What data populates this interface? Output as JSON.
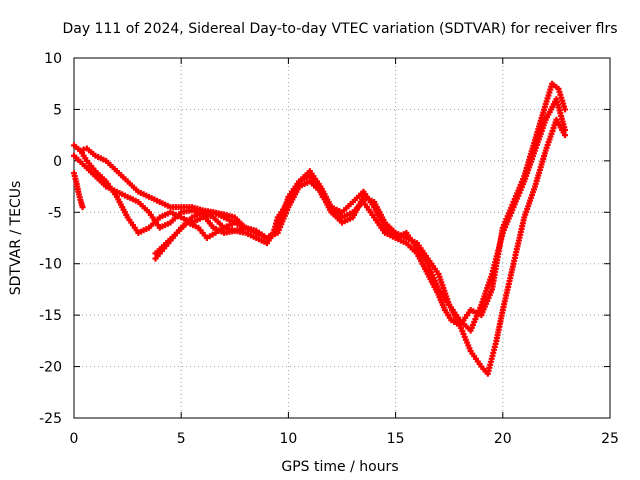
{
  "chart_data": {
    "type": "scatter",
    "title": "Day 111 of 2024, Sidereal Day-to-day VTEC variation (SDTVAR) for receiver flrs",
    "xlabel": "GPS time / hours",
    "ylabel": "SDTVAR / TECUs",
    "xlim": [
      0,
      25
    ],
    "ylim": [
      -25,
      10
    ],
    "xticks": [
      0,
      5,
      10,
      15,
      20,
      25
    ],
    "yticks": [
      -25,
      -20,
      -15,
      -10,
      -5,
      0,
      5,
      10
    ],
    "grid": true,
    "marker": "+",
    "series_color": "#ff0000",
    "series": [
      {
        "name": "track-a",
        "x": [
          0.0,
          0.3,
          0.6,
          1.0,
          1.5,
          2.0,
          2.5,
          3.0,
          3.5,
          4.0,
          4.5,
          5.0,
          5.5,
          6.0,
          6.5,
          7.0,
          7.5,
          8.0,
          8.5,
          9.0,
          9.3,
          9.5,
          10.0,
          10.5,
          11.0,
          11.3,
          11.6,
          12.0,
          12.5,
          13.0,
          13.5,
          14.0,
          14.5,
          15.0,
          15.5,
          16.0,
          16.5,
          17.0,
          17.3,
          17.6,
          18.0,
          18.5,
          19.0,
          19.5,
          20.0,
          20.5,
          21.0,
          21.5,
          22.0,
          22.3,
          22.6,
          22.9
        ],
        "y": [
          1.5,
          1.0,
          1.2,
          0.5,
          0.0,
          -1.0,
          -2.0,
          -3.0,
          -3.5,
          -4.0,
          -4.5,
          -4.5,
          -4.5,
          -4.8,
          -5.0,
          -5.2,
          -5.5,
          -6.5,
          -7.0,
          -7.5,
          -7.0,
          -5.5,
          -4.0,
          -2.0,
          -1.5,
          -2.0,
          -3.5,
          -4.5,
          -5.0,
          -4.0,
          -3.0,
          -4.5,
          -6.5,
          -7.5,
          -8.0,
          -9.0,
          -11.0,
          -13.0,
          -14.5,
          -15.5,
          -16.0,
          -14.5,
          -15.0,
          -12.5,
          -6.5,
          -4.0,
          -1.5,
          2.0,
          5.5,
          7.5,
          7.0,
          5.0
        ]
      },
      {
        "name": "track-b",
        "x": [
          0.0,
          0.5,
          1.0,
          1.5,
          2.0,
          2.5,
          3.0,
          3.5,
          4.0,
          4.5,
          5.0,
          5.5,
          6.0,
          6.5,
          7.0,
          7.5,
          8.0,
          8.5,
          9.0,
          9.5,
          10.0,
          10.5,
          11.0,
          11.5,
          12.0,
          12.5,
          13.0,
          13.5,
          14.0,
          14.5,
          15.0,
          15.5,
          16.0,
          16.5,
          17.0,
          17.5,
          18.0,
          18.5,
          19.0,
          19.5,
          20.0,
          20.5,
          21.0,
          21.5,
          22.0,
          22.5,
          22.9
        ],
        "y": [
          0.5,
          -0.5,
          -1.5,
          -2.5,
          -3.0,
          -3.5,
          -4.0,
          -5.0,
          -6.5,
          -6.0,
          -5.0,
          -4.8,
          -5.2,
          -6.5,
          -7.0,
          -6.8,
          -7.0,
          -7.5,
          -8.0,
          -6.5,
          -3.5,
          -2.0,
          -1.0,
          -2.5,
          -4.5,
          -5.5,
          -5.0,
          -4.0,
          -5.5,
          -7.0,
          -7.5,
          -7.0,
          -8.5,
          -10.0,
          -12.5,
          -14.0,
          -15.5,
          -16.5,
          -14.0,
          -11.0,
          -7.0,
          -4.5,
          -2.0,
          1.0,
          4.0,
          6.0,
          3.0
        ]
      },
      {
        "name": "track-c",
        "x": [
          0.3,
          0.6,
          1.0,
          1.5,
          2.0,
          2.5,
          3.0,
          3.5,
          4.0,
          4.5,
          5.0,
          5.5,
          6.0,
          6.5,
          7.0,
          7.5,
          8.0,
          8.5,
          9.0,
          9.5,
          10.0,
          10.5,
          11.0,
          11.5,
          12.0,
          12.5,
          13.0,
          13.5,
          14.0,
          14.5,
          15.0,
          15.5,
          16.0,
          16.5,
          17.0,
          17.5,
          18.0,
          18.5,
          19.0,
          19.3,
          19.7,
          20.0,
          20.5,
          21.0,
          21.5,
          22.0,
          22.5,
          22.9
        ],
        "y": [
          1.0,
          0.0,
          -1.0,
          -2.0,
          -3.5,
          -5.5,
          -7.0,
          -6.5,
          -5.5,
          -5.0,
          -5.5,
          -6.0,
          -5.5,
          -5.0,
          -5.5,
          -6.0,
          -6.5,
          -7.0,
          -7.5,
          -7.0,
          -4.5,
          -2.5,
          -2.0,
          -3.0,
          -5.0,
          -6.0,
          -5.5,
          -3.5,
          -4.0,
          -6.0,
          -7.0,
          -7.5,
          -8.0,
          -9.5,
          -11.0,
          -14.0,
          -16.0,
          -18.5,
          -20.0,
          -20.7,
          -17.5,
          -14.5,
          -10.0,
          -5.5,
          -2.5,
          1.0,
          4.0,
          2.5
        ]
      },
      {
        "name": "track-d",
        "x": [
          3.8,
          4.2,
          4.6,
          5.0,
          5.5,
          6.0,
          6.5,
          7.0,
          7.5,
          8.0,
          8.5,
          9.0
        ],
        "y": [
          -9.5,
          -8.5,
          -7.5,
          -6.5,
          -5.5,
          -5.0,
          -5.5,
          -6.5,
          -6.8,
          -6.5,
          -6.8,
          -7.5
        ]
      },
      {
        "name": "track-e",
        "x": [
          3.8,
          4.3,
          4.8,
          5.3,
          5.8,
          6.2,
          6.6,
          7.0,
          7.5,
          8.0
        ],
        "y": [
          -9.0,
          -8.0,
          -7.0,
          -6.0,
          -6.5,
          -7.5,
          -7.0,
          -6.5,
          -6.0,
          -6.5
        ]
      },
      {
        "name": "track-f",
        "x": [
          0.0,
          0.1,
          0.2,
          0.3,
          0.4
        ],
        "y": [
          -1.2,
          -2.0,
          -3.0,
          -3.8,
          -4.5
        ]
      }
    ]
  }
}
